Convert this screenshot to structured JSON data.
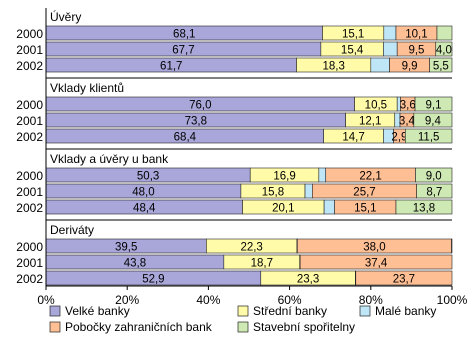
{
  "chart_data": {
    "type": "bar",
    "orientation": "horizontal",
    "stacked": true,
    "percent_stacked": true,
    "xlim": [
      0,
      100
    ],
    "x_ticks": [
      "0%",
      "20%",
      "40%",
      "60%",
      "80%",
      "100%"
    ],
    "legend_position": "bottom",
    "series": [
      {
        "name": "Velké banky",
        "color": "#a9a6d9"
      },
      {
        "name": "Střední banky",
        "color": "#fffba8"
      },
      {
        "name": "Malé banky",
        "color": "#bfe6f7"
      },
      {
        "name": "Pobočky zahraničních bank",
        "color": "#ffbf94"
      },
      {
        "name": "Stavební spořitelny",
        "color": "#cfe9b4"
      }
    ],
    "groups": [
      {
        "title": "Úvěry",
        "rows": [
          {
            "year": "2000",
            "values": [
              68.1,
              15.1,
              3.0,
              10.1,
              3.7
            ],
            "labels": [
              "68,1",
              "15,1",
              "",
              "10,1",
              ""
            ]
          },
          {
            "year": "2001",
            "values": [
              67.7,
              15.4,
              3.4,
              9.5,
              4.0
            ],
            "labels": [
              "67,7",
              "15,4",
              "",
              "9,5",
              "4,0"
            ]
          },
          {
            "year": "2002",
            "values": [
              61.7,
              18.3,
              4.6,
              9.9,
              5.5
            ],
            "labels": [
              "61,7",
              "18,3",
              "",
              "9,9",
              "5,5"
            ]
          }
        ]
      },
      {
        "title": "Vklady klientů",
        "rows": [
          {
            "year": "2000",
            "values": [
              76.0,
              10.5,
              0.8,
              3.6,
              9.1
            ],
            "labels": [
              "76,0",
              "10,5",
              "",
              "3,6",
              "9,1"
            ]
          },
          {
            "year": "2001",
            "values": [
              73.8,
              12.1,
              1.3,
              3.4,
              9.4
            ],
            "labels": [
              "73,8",
              "12,1",
              "",
              "3,4",
              "9,4"
            ]
          },
          {
            "year": "2002",
            "values": [
              68.4,
              14.7,
              2.5,
              2.9,
              11.5
            ],
            "labels": [
              "68,4",
              "14,7",
              "",
              "2,9",
              "11,5"
            ]
          }
        ]
      },
      {
        "title": "Vklady a úvěry u bank",
        "rows": [
          {
            "year": "2000",
            "values": [
              50.3,
              16.9,
              1.7,
              22.1,
              9.0
            ],
            "labels": [
              "50,3",
              "16,9",
              "",
              "22,1",
              "9,0"
            ]
          },
          {
            "year": "2001",
            "values": [
              48.0,
              15.8,
              1.8,
              25.7,
              8.7
            ],
            "labels": [
              "48,0",
              "15,8",
              "",
              "25,7",
              "8,7"
            ]
          },
          {
            "year": "2002",
            "values": [
              48.4,
              20.1,
              2.6,
              15.1,
              13.8
            ],
            "labels": [
              "48,4",
              "20,1",
              "",
              "15,1",
              "13,8"
            ]
          }
        ]
      },
      {
        "title": "Deriváty",
        "rows": [
          {
            "year": "2000",
            "values": [
              39.5,
              22.3,
              0.1,
              38.0,
              0.1
            ],
            "labels": [
              "39,5",
              "22,3",
              "",
              "38,0",
              ""
            ]
          },
          {
            "year": "2001",
            "values": [
              43.8,
              18.7,
              0.1,
              37.4,
              0.0
            ],
            "labels": [
              "43,8",
              "18,7",
              "",
              "37,4",
              ""
            ]
          },
          {
            "year": "2002",
            "values": [
              52.9,
              23.3,
              0.1,
              23.7,
              0.0
            ],
            "labels": [
              "52,9",
              "23,3",
              "",
              "23,7",
              ""
            ]
          }
        ]
      }
    ]
  }
}
